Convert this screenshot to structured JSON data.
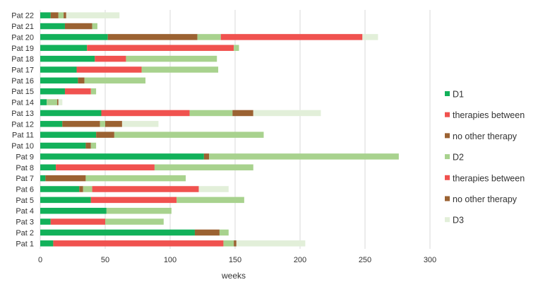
{
  "chart_data": {
    "type": "bar",
    "orientation": "horizontal",
    "stacked": true,
    "title": "",
    "xlabel": "weeks",
    "ylabel": "",
    "xlim": [
      0,
      300
    ],
    "xticks": [
      0,
      50,
      100,
      150,
      200,
      250,
      300
    ],
    "grid": "vertical",
    "legend_position": "right",
    "categories": [
      "Pat 1",
      "Pat 2",
      "Pat 3",
      "Pat 4",
      "Pat 5",
      "Pat 6",
      "Pat 7",
      "Pat 8",
      "Pat 9",
      "Pat 10",
      "Pat 11",
      "Pat 12",
      "Pat 13",
      "Pat 14",
      "Pat 15",
      "Pat 16",
      "Pat 17",
      "Pat 18",
      "Pat 19",
      "Pat 20",
      "Pat 21",
      "Pat 22"
    ],
    "series": [
      {
        "name": "D1",
        "color": "#12b15a",
        "values": [
          10,
          119,
          8,
          51,
          39,
          30,
          4,
          12,
          126,
          35,
          43,
          17,
          47,
          5,
          19,
          29,
          28,
          42,
          36,
          52,
          19,
          8
        ]
      },
      {
        "name": "therapies between",
        "color": "#f0524f",
        "values": [
          131,
          0,
          42,
          0,
          66,
          0,
          0,
          76,
          0,
          0,
          0,
          0,
          68,
          0,
          20,
          0,
          50,
          24,
          113,
          0,
          0,
          0
        ]
      },
      {
        "name": "no other therapy",
        "color": "#9b6232",
        "values": [
          0,
          19,
          0,
          0,
          0,
          3,
          31,
          0,
          4,
          4,
          14,
          29,
          0,
          0,
          0,
          5,
          0,
          0,
          0,
          69,
          21,
          6
        ]
      },
      {
        "name": "D2",
        "color": "#a8d28e",
        "values": [
          8,
          7,
          45,
          50,
          52,
          7,
          77,
          76,
          146,
          4,
          115,
          4,
          33,
          8,
          4,
          47,
          59,
          70,
          4,
          18,
          4,
          4
        ]
      },
      {
        "name": "therapies between",
        "color": "#f0524f",
        "values": [
          0,
          0,
          0,
          0,
          0,
          82,
          0,
          0,
          0,
          0,
          0,
          0,
          0,
          0,
          0,
          0,
          0,
          0,
          0,
          109,
          0,
          0
        ]
      },
      {
        "name": "no other therapy",
        "color": "#9b6232",
        "values": [
          2,
          0,
          0,
          0,
          0,
          0,
          0,
          0,
          0,
          0,
          0,
          13,
          16,
          1,
          0,
          0,
          0,
          0,
          0,
          0,
          0,
          2
        ]
      },
      {
        "name": "D3",
        "color": "#e2efd9",
        "values": [
          53,
          0,
          0,
          0,
          0,
          23,
          0,
          0,
          0,
          0,
          0,
          28,
          52,
          3,
          0,
          0,
          0,
          0,
          0,
          12,
          0,
          41
        ]
      }
    ]
  }
}
